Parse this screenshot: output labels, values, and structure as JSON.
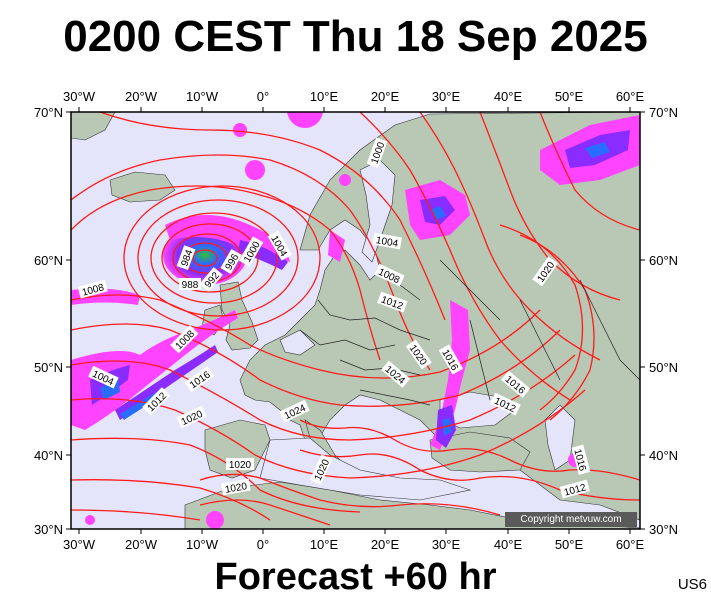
{
  "title": "0200 CEST Thu 18 Sep 2025",
  "footer": "Forecast +60 hr",
  "model_code": "US6",
  "copyright": "Copyright metvuw.com",
  "longitude_labels": [
    "30°W",
    "20°W",
    "10°W",
    "0°",
    "10°E",
    "20°E",
    "30°E",
    "40°E",
    "50°E",
    "60°E"
  ],
  "latitude_labels": [
    "70°N",
    "60°N",
    "50°N",
    "40°N",
    "30°N"
  ],
  "isobar_labels": [
    "1000",
    "1004",
    "1008",
    "1012",
    "1016",
    "1020",
    "1024",
    "984",
    "988",
    "992",
    "996",
    "1000",
    "1004",
    "1008",
    "1012",
    "1016",
    "1020",
    "1024",
    "1008",
    "1004",
    "1012",
    "1016",
    "1020",
    "1016",
    "1012",
    "1020",
    "1016",
    "1012",
    "1020",
    "1020",
    "1020",
    "1024"
  ],
  "colors": {
    "background": "#ffffff",
    "ocean": "#e4e4fa",
    "land": "#b9c8b5",
    "isobar": "#ff1a1a",
    "precip_light": "#ff44ff",
    "precip_heavy": "#8a2cff",
    "precip_core": "#2a6cff",
    "copyright_box": "#5a5a5a"
  },
  "map_extent": {
    "lon_min": -30,
    "lon_max": 60,
    "lat_min": 30,
    "lat_max": 70
  }
}
